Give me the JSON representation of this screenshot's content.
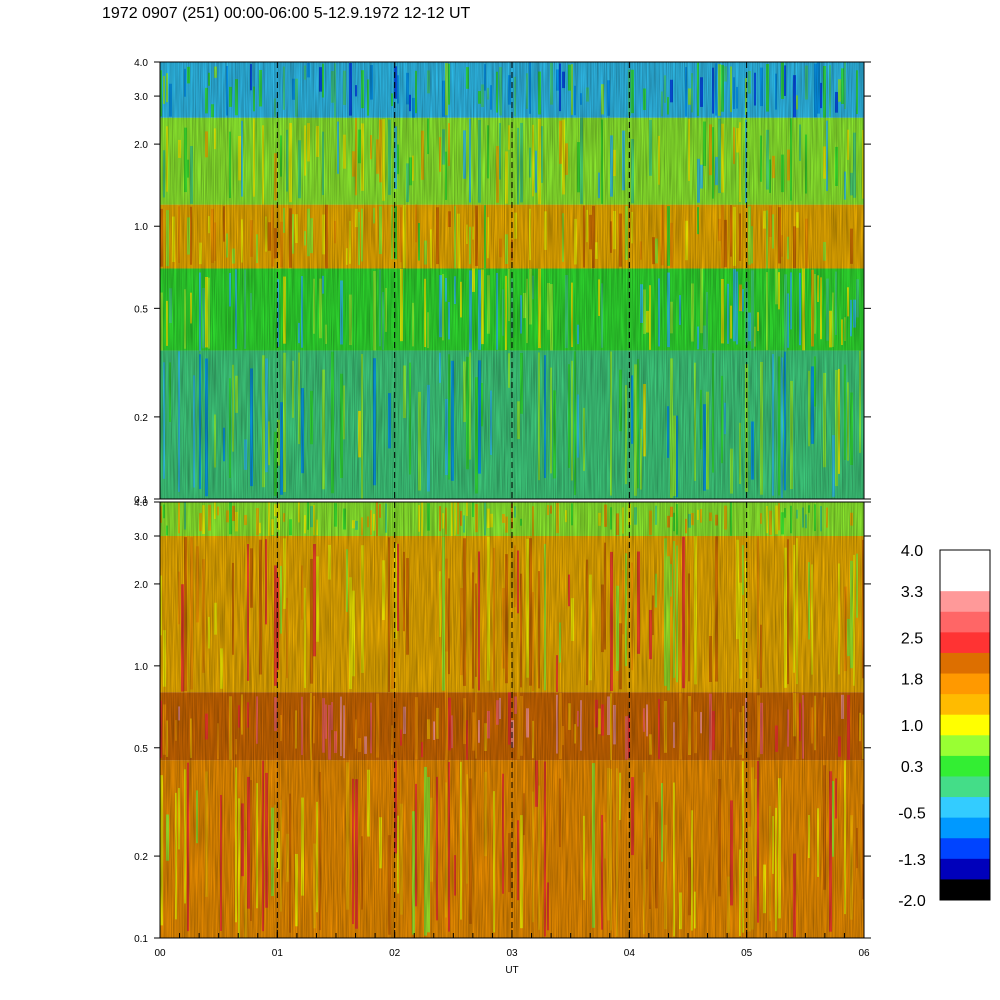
{
  "title": "1972 0907 (251) 00:00-06:00 5-12.9.1972  12-12 UT",
  "chart_data": {
    "type": "heatmap",
    "xlabel": "UT",
    "x_ticks": [
      "00",
      "01",
      "02",
      "03",
      "04",
      "05",
      "06"
    ],
    "xlim": [
      0,
      6
    ],
    "y_scale": "log",
    "ylim": [
      0.1,
      4.0
    ],
    "y_ticks": [
      "0.1",
      "0.2",
      "0.5",
      "1.0",
      "2.0",
      "3.0",
      "4.0"
    ],
    "y_tick_values": [
      0.1,
      0.2,
      0.5,
      1.0,
      2.0,
      3.0,
      4.0
    ],
    "hour_gridlines": [
      1,
      2,
      3,
      4,
      5
    ],
    "panels": [
      {
        "name": "upper",
        "dominant_levels": "-1.3 to 1.8",
        "bands": [
          {
            "y_from": 0.1,
            "y_to": 0.35,
            "level": 0.0
          },
          {
            "y_from": 0.35,
            "y_to": 0.7,
            "level": 0.3
          },
          {
            "y_from": 0.7,
            "y_to": 1.2,
            "level": 1.3
          },
          {
            "y_from": 1.2,
            "y_to": 2.5,
            "level": 0.5
          },
          {
            "y_from": 2.5,
            "y_to": 4.0,
            "level": -0.3
          }
        ]
      },
      {
        "name": "lower",
        "dominant_levels": "0.3 to 2.5",
        "bands": [
          {
            "y_from": 0.1,
            "y_to": 0.45,
            "level": 1.6
          },
          {
            "y_from": 0.45,
            "y_to": 0.8,
            "level": 2.2
          },
          {
            "y_from": 0.8,
            "y_to": 3.0,
            "level": 1.5
          },
          {
            "y_from": 3.0,
            "y_to": 4.0,
            "level": 0.8
          }
        ]
      }
    ],
    "colorbar": {
      "labels": [
        "4.0",
        "3.3",
        "2.5",
        "1.8",
        "1.0",
        "0.3",
        "-0.5",
        "-1.3",
        "-2.0"
      ],
      "label_values": [
        4.0,
        3.3,
        2.5,
        1.8,
        1.0,
        0.3,
        -0.5,
        -1.3,
        -2.0
      ],
      "range": [
        -2.0,
        4.0
      ],
      "colors_top_to_bottom": [
        "#ffffff",
        "#ffffff",
        "#ff9999",
        "#ff6666",
        "#ff3333",
        "#dd6f00",
        "#ff9900",
        "#ffbb00",
        "#ffff00",
        "#99ff33",
        "#33ee33",
        "#44dd88",
        "#33ccff",
        "#0099ff",
        "#0044ff",
        "#0000bb",
        "#000000"
      ]
    }
  }
}
